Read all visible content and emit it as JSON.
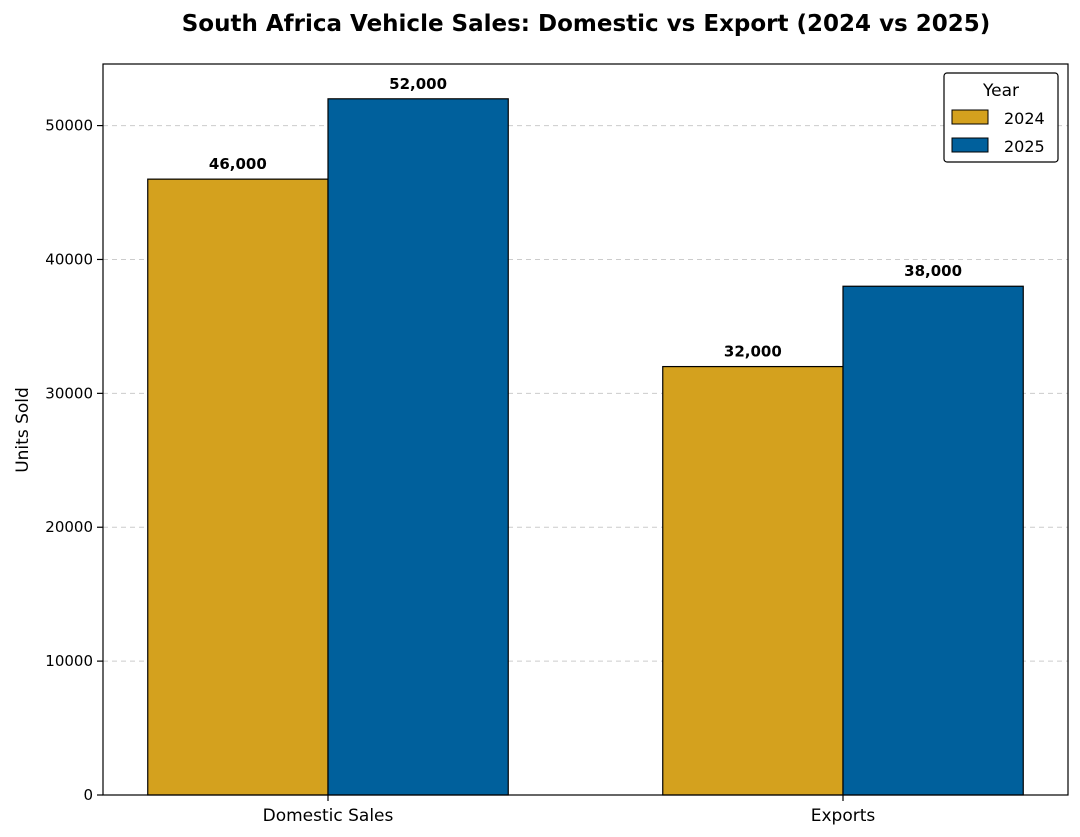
{
  "chart_data": {
    "type": "bar",
    "title": "South Africa Vehicle Sales: Domestic vs Export (2024 vs 2025)",
    "xlabel": "",
    "ylabel": "Units Sold",
    "categories": [
      "Domestic Sales",
      "Exports"
    ],
    "series": [
      {
        "name": "2024",
        "color": "#D4A11E",
        "values": [
          46000,
          32000
        ],
        "labels": [
          "46,000",
          "32,000"
        ]
      },
      {
        "name": "2025",
        "color": "#00609C",
        "values": [
          52000,
          38000
        ],
        "labels": [
          "52,000",
          "38,000"
        ]
      }
    ],
    "ylim": [
      0,
      54600
    ],
    "yticks": [
      0,
      10000,
      20000,
      30000,
      40000,
      50000
    ],
    "ytick_labels": [
      "0",
      "10000",
      "20000",
      "30000",
      "40000",
      "50000"
    ],
    "grid": {
      "axis": "y",
      "style": "dashed"
    },
    "legend": {
      "title": "Year",
      "placement": "top-right"
    }
  }
}
